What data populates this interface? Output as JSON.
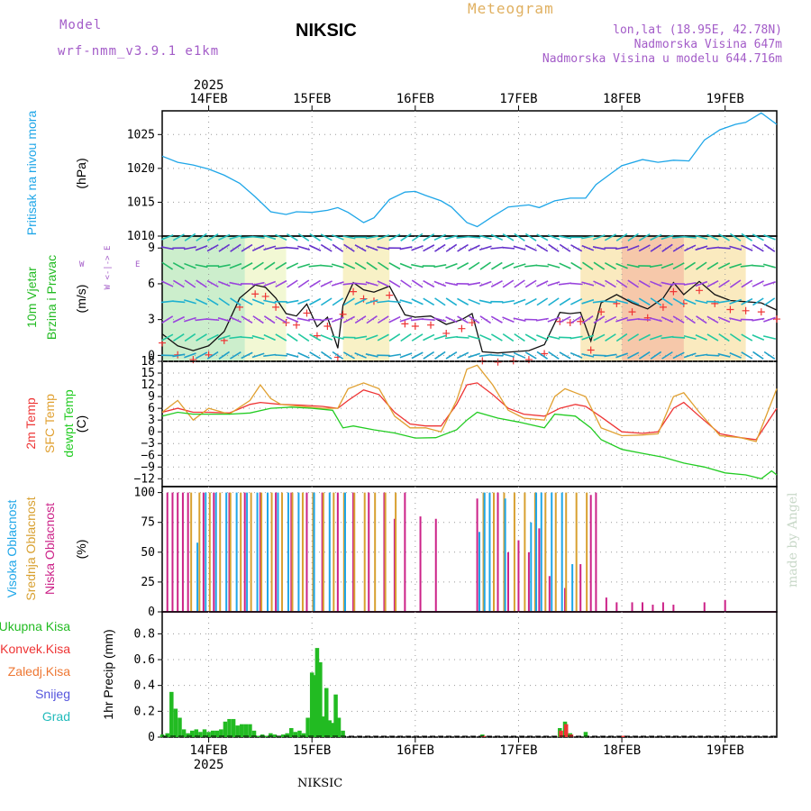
{
  "header": {
    "model_label": "Model",
    "model_name": "wrf-nmm_v3.9.1  e1km",
    "station": "NIKSIC",
    "chart_title": "Meteogram",
    "lonlat": "lon,lat (18.95E, 42.78N)",
    "elevation": "Nadmorska Visina 647m",
    "model_elevation": "Nadmorska Visina u modelu 644.716m"
  },
  "footer": {
    "station": "NIKSIC",
    "credit": "made by Angel"
  },
  "colors": {
    "pressure": "#1ea6e8",
    "temp_2m": "#ee3535",
    "temp_sfc": "#e0a030",
    "dewpoint": "#22cc22",
    "cloud_high": "#1ea6e8",
    "cloud_mid": "#d8a030",
    "cloud_low": "#cc2288",
    "precip_total": "#22bb22",
    "precip_conv": "#ee3333",
    "label_purple": "#a35cc8",
    "label_orange": "#e0b060",
    "grid": "#999999"
  },
  "chart_data": {
    "type": "line",
    "x_axis": {
      "year_label": "2025",
      "day_labels": [
        "14FEB",
        "15FEB",
        "16FEB",
        "17FEB",
        "18FEB",
        "19FEB"
      ],
      "range_days": [
        13.55,
        19.5
      ]
    },
    "panels": [
      {
        "id": "pressure",
        "ylabel": "(hPa)",
        "side_labels": [
          "Pritisak na nivou mora"
        ],
        "ylim": [
          1010,
          1028.5
        ],
        "yticks": [
          1010,
          1015,
          1020,
          1025
        ],
        "series": [
          {
            "color": "#1ea6e8",
            "x": [
              13.55,
              13.7,
              13.85,
              14.0,
              14.15,
              14.3,
              14.45,
              14.6,
              14.75,
              14.85,
              15.0,
              15.15,
              15.25,
              15.35,
              15.5,
              15.6,
              15.75,
              15.9,
              16.0,
              16.1,
              16.25,
              16.35,
              16.5,
              16.6,
              16.75,
              16.9,
              17.1,
              17.2,
              17.35,
              17.5,
              17.65,
              17.75,
              17.9,
              18.0,
              18.2,
              18.35,
              18.5,
              18.65,
              18.8,
              18.95,
              19.1,
              19.2,
              19.35,
              19.5
            ],
            "y": [
              1021.8,
              1020.9,
              1020.5,
              1019.9,
              1019,
              1017.8,
              1015.8,
              1013.6,
              1013.2,
              1013.6,
              1013.5,
              1013.8,
              1014.2,
              1013.5,
              1012,
              1012.7,
              1015.4,
              1016.5,
              1016.6,
              1016,
              1015.2,
              1014.3,
              1012,
              1011.4,
              1012.9,
              1014.3,
              1014.6,
              1014.2,
              1015.2,
              1015.6,
              1015.6,
              1017.6,
              1019.3,
              1020.4,
              1021.3,
              1020.9,
              1021.2,
              1021.1,
              1024.2,
              1025.7,
              1026.5,
              1026.8,
              1028.2,
              1026.5
            ]
          }
        ]
      },
      {
        "id": "wind",
        "ylabel": "(m/s)",
        "side_labels": [
          "10m  Vjetar",
          "Brzina i Pravac"
        ],
        "compass": "W <-|-> E",
        "ylim": [
          -0.5,
          10
        ],
        "yticks": [
          0,
          3,
          6,
          9
        ],
        "series": [
          {
            "name": "Brzina",
            "color": "#111111",
            "x": [
              13.55,
              13.7,
              13.85,
              14.0,
              14.15,
              14.3,
              14.45,
              14.55,
              14.65,
              14.75,
              14.85,
              14.95,
              15.05,
              15.15,
              15.25,
              15.3,
              15.4,
              15.5,
              15.6,
              15.75,
              15.9,
              16.0,
              16.15,
              16.3,
              16.45,
              16.55,
              16.65,
              16.8,
              16.95,
              17.1,
              17.25,
              17.4,
              17.5,
              17.6,
              17.7,
              17.8,
              17.95,
              18.1,
              18.25,
              18.4,
              18.5,
              18.6,
              18.75,
              18.9,
              19.05,
              19.2,
              19.35,
              19.5
            ],
            "y": [
              1.8,
              0.8,
              0.4,
              0.8,
              2,
              4.8,
              5.9,
              5.7,
              4.8,
              3.5,
              3.3,
              4.3,
              2.4,
              3.2,
              0.6,
              4.2,
              6.1,
              5.5,
              5.3,
              5.8,
              3.4,
              3.2,
              3.3,
              2.6,
              3.0,
              3.5,
              0.3,
              0.2,
              0.3,
              0.4,
              0.9,
              3.6,
              3.5,
              3.6,
              1.2,
              4.4,
              5.1,
              4.4,
              3.9,
              4.8,
              6.1,
              5.1,
              6.2,
              5.1,
              4.6,
              4.5,
              4.4,
              3.8
            ]
          }
        ]
      },
      {
        "id": "temperature",
        "ylabel": "(C)",
        "side_labels": [
          "2m Temp",
          "SFC Temp",
          "dewpt Temp"
        ],
        "ylim": [
          -14,
          18
        ],
        "yticks": [
          -12,
          -9,
          -6,
          -3,
          0,
          3,
          6,
          9,
          12,
          15,
          18
        ],
        "series": [
          {
            "name": "2m Temp",
            "color": "#ee3535",
            "x": [
              13.55,
              13.7,
              13.85,
              14.0,
              14.2,
              14.4,
              14.5,
              14.7,
              14.9,
              15.1,
              15.25,
              15.35,
              15.5,
              15.65,
              15.8,
              15.95,
              16.1,
              16.25,
              16.4,
              16.5,
              16.6,
              16.75,
              16.9,
              17.05,
              17.25,
              17.4,
              17.55,
              17.65,
              17.8,
              18.0,
              18.2,
              18.35,
              18.5,
              18.6,
              18.75,
              18.95,
              19.15,
              19.3,
              19.5
            ],
            "y": [
              5,
              6,
              5,
              5,
              4.8,
              7,
              7.5,
              7,
              6.8,
              6.5,
              6,
              8,
              10.7,
              9.5,
              5,
              2,
              1.5,
              1.5,
              7,
              12,
              12.5,
              9.5,
              6,
              4.5,
              4,
              6,
              7,
              6.5,
              3.8,
              0,
              -0.4,
              0,
              6,
              7.5,
              4,
              -0.5,
              -1.5,
              -2,
              6
            ]
          },
          {
            "name": "SFC Temp",
            "color": "#e0a030",
            "x": [
              13.55,
              13.7,
              13.85,
              14.0,
              14.2,
              14.4,
              14.5,
              14.6,
              14.7,
              14.9,
              15.1,
              15.25,
              15.35,
              15.5,
              15.65,
              15.8,
              15.95,
              16.1,
              16.25,
              16.4,
              16.5,
              16.6,
              16.75,
              16.9,
              17.05,
              17.25,
              17.35,
              17.45,
              17.55,
              17.65,
              17.8,
              18.0,
              18.2,
              18.35,
              18.5,
              18.6,
              18.75,
              18.95,
              19.15,
              19.3,
              19.5
            ],
            "y": [
              5,
              8,
              3,
              6,
              4.5,
              8,
              12,
              8.5,
              7,
              6.5,
              6,
              6,
              11,
              12.5,
              11,
              4,
              1,
              1,
              0,
              8,
              16,
              17,
              12,
              5.5,
              3.5,
              3,
              9,
              11,
              10,
              9,
              1,
              -1,
              -0.8,
              -0.5,
              9,
              10,
              5,
              -1,
              -1.5,
              -2.5,
              11
            ]
          },
          {
            "name": "dewpt Temp",
            "color": "#22cc22",
            "x": [
              13.55,
              13.7,
              13.85,
              14.0,
              14.2,
              14.4,
              14.6,
              14.8,
              15.0,
              15.2,
              15.3,
              15.4,
              15.6,
              15.8,
              16.0,
              16.2,
              16.4,
              16.5,
              16.6,
              16.8,
              17.0,
              17.25,
              17.35,
              17.55,
              17.7,
              17.8,
              18.0,
              18.2,
              18.4,
              18.6,
              18.8,
              19.0,
              19.2,
              19.35,
              19.45,
              19.5
            ],
            "y": [
              4,
              5,
              4.5,
              4.5,
              4.5,
              4.8,
              6,
              6.3,
              6,
              5.5,
              1,
              1.5,
              0.5,
              -0.3,
              -1.6,
              -1.5,
              0.5,
              3,
              5,
              3.5,
              2.5,
              1,
              4.5,
              4,
              1,
              -2,
              -4.5,
              -5.5,
              -6.5,
              -8,
              -9,
              -10.5,
              -11,
              -12,
              -10,
              -11
            ]
          }
        ]
      },
      {
        "id": "clouds",
        "ylabel": "(%)",
        "side_labels": [
          "Visoka Oblacnost",
          "Srednja Oblacnost",
          "Niska Oblacnost"
        ],
        "ylim": [
          0,
          105
        ],
        "yticks": [
          0,
          25,
          50,
          75,
          100
        ],
        "bars": [
          {
            "name": "Niska Oblacnost",
            "color": "#cc2288",
            "x": [
              13.6,
              13.65,
              13.7,
              13.75,
              13.8,
              13.95,
              14.05,
              14.2,
              14.35,
              14.5,
              14.65,
              14.8,
              14.95,
              15.1,
              15.25,
              15.4,
              15.55,
              15.7,
              15.8,
              15.9,
              16.05,
              16.2,
              16.6,
              16.8,
              16.9,
              17.0,
              17.1,
              17.2,
              17.3,
              17.45,
              17.6,
              17.7,
              17.75,
              17.85,
              17.95,
              18.1,
              18.2,
              18.3,
              18.4,
              18.5,
              18.8,
              19.0
            ],
            "values": [
              100,
              100,
              100,
              100,
              100,
              100,
              100,
              100,
              100,
              100,
              100,
              100,
              100,
              100,
              100,
              100,
              100,
              100,
              78,
              100,
              80,
              78,
              95,
              100,
              50,
              60,
              50,
              70,
              30,
              20,
              40,
              98,
              100,
              12,
              8,
              8,
              8,
              6,
              8,
              6,
              8,
              10
            ]
          },
          {
            "name": "Srednja Oblacnost",
            "color": "#d8a030",
            "x": [
              13.82,
              13.9,
              14.0,
              14.1,
              14.2,
              14.3,
              14.4,
              14.5,
              14.6,
              14.7,
              14.8,
              14.9,
              15.0,
              15.1,
              15.2,
              15.3,
              15.4,
              15.5,
              15.6,
              15.7,
              15.8,
              16.65,
              16.75,
              16.85,
              16.95,
              17.05,
              17.15,
              17.25,
              17.35,
              17.45,
              17.55,
              17.65
            ],
            "values": [
              100,
              100,
              100,
              100,
              100,
              100,
              100,
              100,
              100,
              100,
              100,
              100,
              100,
              100,
              100,
              100,
              100,
              100,
              100,
              100,
              100,
              100,
              100,
              100,
              100,
              100,
              100,
              100,
              100,
              100,
              100,
              100
            ]
          },
          {
            "name": "Visoka Oblacnost",
            "color": "#1ea6e8",
            "x": [
              13.87,
              13.95,
              14.05,
              14.15,
              14.25,
              14.35,
              14.45,
              14.55,
              14.65,
              14.75,
              14.85,
              15.0,
              15.15,
              15.3,
              16.6,
              16.65,
              16.7,
              16.85,
              17.1,
              17.15,
              17.2,
              17.3,
              17.4,
              17.5
            ],
            "values": [
              58,
              100,
              100,
              100,
              100,
              100,
              100,
              100,
              100,
              100,
              100,
              100,
              100,
              100,
              67,
              100,
              100,
              95,
              75,
              100,
              100,
              100,
              100,
              40
            ]
          }
        ]
      },
      {
        "id": "precip",
        "ylabel": "1hr Precip (mm)",
        "side_labels": [
          "Ukupna  Kisa",
          "Konvek.Kisa",
          "Zaledj.Kisa",
          "Snijeg",
          "Grad"
        ],
        "ylim": [
          0,
          0.97
        ],
        "yticks": [
          0,
          0.2,
          0.4,
          0.6,
          0.8
        ],
        "bars": [
          {
            "name": "Ukupna Kisa",
            "color": "#22bb22",
            "x": [
              13.55,
              13.6,
              13.64,
              13.68,
              13.72,
              13.76,
              13.8,
              13.84,
              13.88,
              13.92,
              13.96,
              14.0,
              14.04,
              14.08,
              14.12,
              14.16,
              14.2,
              14.24,
              14.28,
              14.32,
              14.36,
              14.4,
              14.44,
              14.48,
              14.52,
              14.56,
              14.6,
              14.64,
              14.68,
              14.72,
              14.76,
              14.8,
              14.84,
              14.88,
              14.92,
              14.96,
              15.0,
              15.02,
              15.05,
              15.08,
              15.11,
              15.14,
              15.17,
              15.2,
              15.23,
              15.26,
              15.3,
              16.65,
              17.4,
              17.45,
              17.5,
              17.65
            ],
            "values": [
              0.02,
              0.03,
              0.35,
              0.22,
              0.15,
              0.06,
              0.03,
              0.05,
              0.06,
              0.04,
              0.06,
              0.04,
              0.05,
              0.05,
              0.06,
              0.12,
              0.14,
              0.14,
              0.09,
              0.1,
              0.1,
              0.1,
              0.05,
              0.01,
              0.02,
              0.01,
              0.03,
              0.02,
              0.01,
              0.02,
              0.03,
              0.07,
              0.04,
              0.05,
              0.03,
              0.15,
              0.5,
              0.48,
              0.69,
              0.58,
              0.16,
              0.38,
              0.13,
              0.11,
              0.33,
              0.15,
              0.05,
              0.02,
              0.07,
              0.12,
              0.03,
              0.04
            ]
          },
          {
            "name": "Konvek.Kisa",
            "color": "#ee3333",
            "x": [
              17.4,
              17.45,
              17.5,
              16.65,
              18.0
            ],
            "values": [
              0.05,
              0.1,
              0.02,
              0.01,
              0.01
            ]
          }
        ]
      }
    ]
  }
}
